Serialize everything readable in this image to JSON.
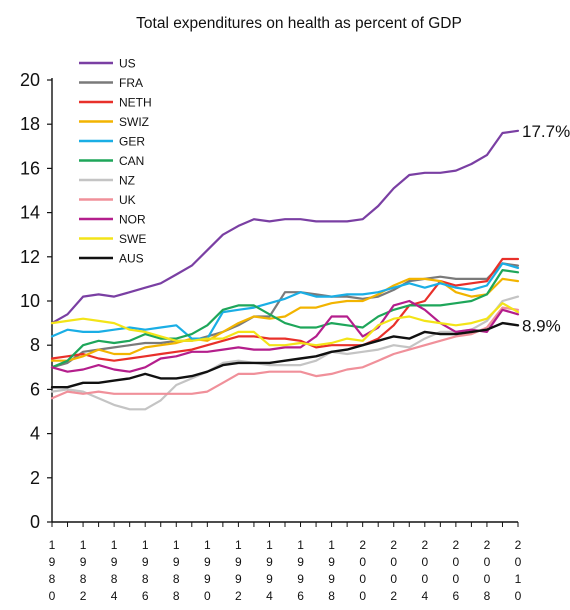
{
  "chart_data": {
    "type": "line",
    "title": "Total expenditures on health as percent of GDP",
    "xlabel": "",
    "ylabel": "",
    "ylim": [
      0,
      20
    ],
    "yticks": [
      "0",
      "2",
      "4",
      "6",
      "8",
      "10",
      "12",
      "14",
      "16",
      "18",
      "20"
    ],
    "xlim": [
      1980,
      2010
    ],
    "xticks": [
      {
        "year": 1980,
        "label": "1980"
      },
      {
        "year": 1982,
        "label": "1982"
      },
      {
        "year": 1984,
        "label": "1984"
      },
      {
        "year": 1986,
        "label": "1986"
      },
      {
        "year": 1988,
        "label": "1988"
      },
      {
        "year": 1990,
        "label": "1990"
      },
      {
        "year": 1992,
        "label": "1992"
      },
      {
        "year": 1994,
        "label": "1994"
      },
      {
        "year": 1996,
        "label": "1996"
      },
      {
        "year": 1998,
        "label": "1998"
      },
      {
        "year": 2000,
        "label": "2000"
      },
      {
        "year": 2002,
        "label": "2002"
      },
      {
        "year": 2004,
        "label": "2004"
      },
      {
        "year": 2006,
        "label": "2006"
      },
      {
        "year": 2008,
        "label": "2008"
      },
      {
        "year": 2010,
        "label": "2010"
      }
    ],
    "grid": false,
    "legend_position": "top-left",
    "annotations": [
      {
        "text": "17.7%",
        "series": "US"
      },
      {
        "text": "8.9%",
        "series": "AUS"
      }
    ],
    "x": [
      1980,
      1981,
      1982,
      1983,
      1984,
      1985,
      1986,
      1987,
      1988,
      1989,
      1990,
      1991,
      1992,
      1993,
      1994,
      1995,
      1996,
      1997,
      1998,
      1999,
      2000,
      2001,
      2002,
      2003,
      2004,
      2005,
      2006,
      2007,
      2008,
      2009,
      2010
    ],
    "series": [
      {
        "name": "US",
        "color": "#7a3fa3",
        "values": [
          9.0,
          9.4,
          10.2,
          10.3,
          10.2,
          10.4,
          10.6,
          10.8,
          11.2,
          11.6,
          12.3,
          13.0,
          13.4,
          13.7,
          13.6,
          13.7,
          13.7,
          13.6,
          13.6,
          13.6,
          13.7,
          14.3,
          15.1,
          15.7,
          15.8,
          15.8,
          15.9,
          16.2,
          16.6,
          17.6,
          17.7
        ]
      },
      {
        "name": "FRA",
        "color": "#7a7a7a",
        "values": [
          7.0,
          7.2,
          7.7,
          7.8,
          7.9,
          8.0,
          8.1,
          8.1,
          8.2,
          8.2,
          8.4,
          8.6,
          8.9,
          9.3,
          9.3,
          10.4,
          10.4,
          10.3,
          10.2,
          10.2,
          10.1,
          10.2,
          10.5,
          10.9,
          11.0,
          11.1,
          11.0,
          11.0,
          11.0,
          11.7,
          11.6
        ]
      },
      {
        "name": "NETH",
        "color": "#e8302a",
        "values": [
          7.4,
          7.5,
          7.6,
          7.4,
          7.3,
          7.4,
          7.5,
          7.6,
          7.7,
          7.8,
          8.0,
          8.2,
          8.4,
          8.4,
          8.3,
          8.3,
          8.2,
          7.9,
          8.0,
          8.0,
          8.0,
          8.3,
          8.9,
          9.8,
          10.0,
          10.9,
          10.7,
          10.8,
          10.9,
          11.9,
          11.9
        ]
      },
      {
        "name": "SWIZ",
        "color": "#f2b400",
        "values": [
          7.3,
          7.3,
          7.5,
          7.8,
          7.6,
          7.6,
          7.9,
          8.0,
          8.1,
          8.3,
          8.2,
          8.6,
          9.0,
          9.3,
          9.2,
          9.3,
          9.7,
          9.7,
          9.9,
          10.0,
          10.0,
          10.3,
          10.7,
          11.0,
          11.0,
          10.9,
          10.4,
          10.2,
          10.3,
          11.0,
          10.9
        ]
      },
      {
        "name": "GER",
        "color": "#1aaee5",
        "values": [
          8.4,
          8.7,
          8.6,
          8.6,
          8.7,
          8.8,
          8.7,
          8.8,
          8.9,
          8.3,
          8.3,
          9.5,
          9.6,
          9.7,
          9.9,
          10.1,
          10.4,
          10.2,
          10.2,
          10.3,
          10.3,
          10.4,
          10.6,
          10.8,
          10.6,
          10.8,
          10.6,
          10.5,
          10.7,
          11.7,
          11.5
        ]
      },
      {
        "name": "CAN",
        "color": "#1ea65a",
        "values": [
          7.0,
          7.3,
          8.0,
          8.2,
          8.1,
          8.2,
          8.5,
          8.3,
          8.3,
          8.5,
          8.9,
          9.6,
          9.8,
          9.8,
          9.4,
          9.0,
          8.8,
          8.8,
          9.0,
          8.9,
          8.8,
          9.3,
          9.6,
          9.8,
          9.8,
          9.8,
          9.9,
          10.0,
          10.3,
          11.4,
          11.3
        ]
      },
      {
        "name": "NZ",
        "color": "#c4c4c4",
        "values": [
          5.9,
          6.0,
          5.9,
          5.6,
          5.3,
          5.1,
          5.1,
          5.5,
          6.2,
          6.5,
          6.8,
          7.2,
          7.3,
          7.2,
          7.1,
          7.1,
          7.1,
          7.3,
          7.7,
          7.6,
          7.7,
          7.8,
          8.0,
          7.9,
          8.3,
          8.6,
          8.6,
          8.7,
          9.1,
          10.0,
          10.2
        ]
      },
      {
        "name": "UK",
        "color": "#f0909a",
        "values": [
          5.6,
          5.9,
          5.8,
          5.9,
          5.8,
          5.8,
          5.8,
          5.8,
          5.8,
          5.8,
          5.9,
          6.3,
          6.7,
          6.7,
          6.8,
          6.8,
          6.8,
          6.6,
          6.7,
          6.9,
          7.0,
          7.3,
          7.6,
          7.8,
          8.0,
          8.2,
          8.4,
          8.5,
          8.8,
          9.7,
          9.6
        ]
      },
      {
        "name": "NOR",
        "color": "#b41e8c",
        "values": [
          7.0,
          6.8,
          6.9,
          7.1,
          6.9,
          6.8,
          7.0,
          7.4,
          7.5,
          7.7,
          7.7,
          7.8,
          7.9,
          7.8,
          7.8,
          7.9,
          7.9,
          8.4,
          9.3,
          9.3,
          8.4,
          8.8,
          9.8,
          10.0,
          9.6,
          9.0,
          8.6,
          8.7,
          8.6,
          9.6,
          9.4
        ]
      },
      {
        "name": "SWE",
        "color": "#f3e418",
        "values": [
          9.0,
          9.1,
          9.2,
          9.1,
          9.0,
          8.7,
          8.6,
          8.4,
          8.2,
          8.2,
          8.3,
          8.3,
          8.6,
          8.6,
          8.0,
          8.0,
          8.1,
          8.0,
          8.1,
          8.3,
          8.2,
          8.9,
          9.2,
          9.3,
          9.1,
          9.0,
          8.9,
          9.0,
          9.2,
          9.9,
          9.5
        ]
      },
      {
        "name": "AUS",
        "color": "#111111",
        "values": [
          6.1,
          6.1,
          6.3,
          6.3,
          6.4,
          6.5,
          6.7,
          6.5,
          6.5,
          6.6,
          6.8,
          7.1,
          7.2,
          7.2,
          7.2,
          7.3,
          7.4,
          7.5,
          7.7,
          7.8,
          8.0,
          8.2,
          8.4,
          8.3,
          8.6,
          8.5,
          8.5,
          8.6,
          8.7,
          9.0,
          8.9
        ]
      }
    ]
  }
}
